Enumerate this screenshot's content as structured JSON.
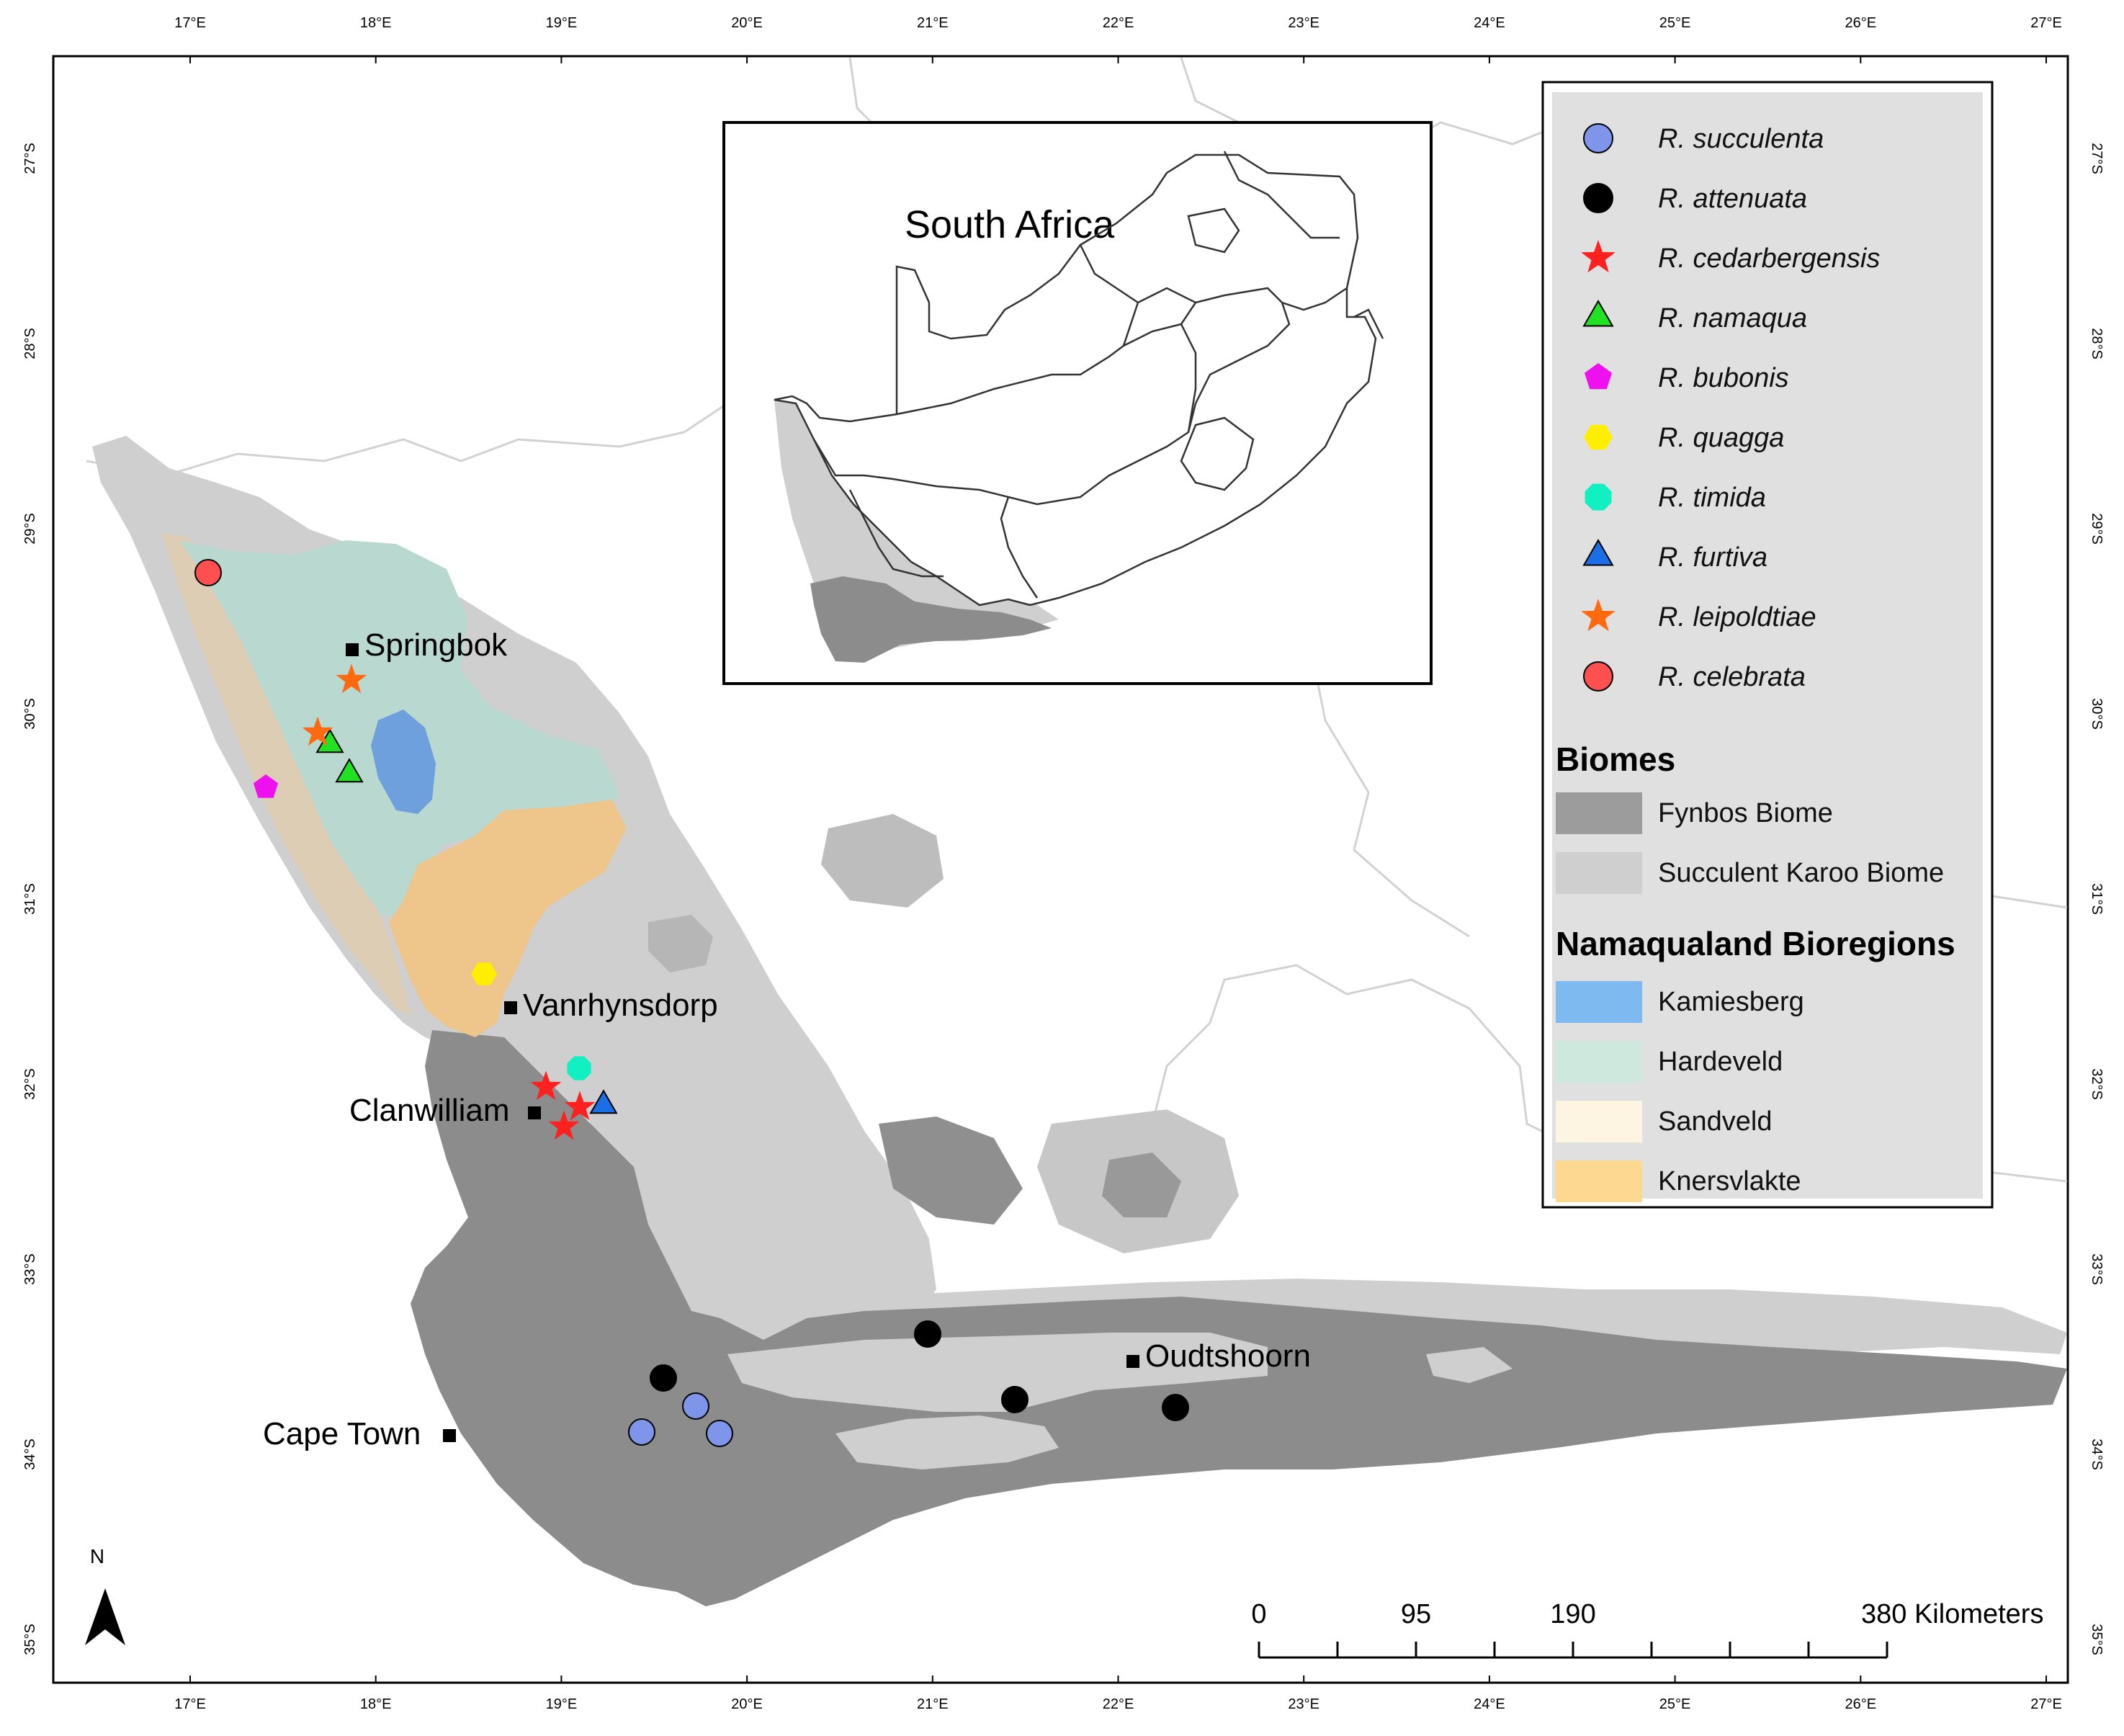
{
  "map": {
    "lon_ticks": [
      "17°E",
      "18°E",
      "19°E",
      "20°E",
      "21°E",
      "22°E",
      "23°E",
      "24°E",
      "25°E",
      "26°E",
      "27°E"
    ],
    "lat_ticks": [
      "27°S",
      "28°S",
      "29°S",
      "30°S",
      "31°S",
      "32°S",
      "33°S",
      "34°S",
      "35°S"
    ],
    "towns": [
      {
        "name": "Springbok"
      },
      {
        "name": "Vanrhynsdorp"
      },
      {
        "name": "Clanwilliam"
      },
      {
        "name": "Cape Town"
      },
      {
        "name": "Oudtshoorn"
      }
    ],
    "north_arrow": "N",
    "inset": {
      "title": "South Africa"
    },
    "scale_bar": {
      "labels": [
        "0",
        "95",
        "190",
        "380 Kilometers"
      ]
    },
    "colors": {
      "fynbos": "#8c8c8c",
      "succulent_karoo": "#cfcfcf",
      "kamiesberg": "#7eb3ee",
      "hardeveld": "#cfe8dd",
      "sandveld": "#fdf5e2",
      "knersvlakte": "#fcd891",
      "legend_bg": "#e0e0e0"
    }
  },
  "legend": {
    "species": [
      {
        "label": "R. succulenta",
        "icon": "circle-icon",
        "color": "#7f95ea"
      },
      {
        "label": "R. attenuata",
        "icon": "circle-icon",
        "color": "#000000"
      },
      {
        "label": "R. cedarbergensis",
        "icon": "star-icon",
        "color": "#ff2020"
      },
      {
        "label": "R. namaqua",
        "icon": "triangle-icon",
        "color": "#22e022"
      },
      {
        "label": "R. bubonis",
        "icon": "pentagon-icon",
        "color": "#ee10ee"
      },
      {
        "label": "R. quagga",
        "icon": "hexagon-icon",
        "color": "#ffee00"
      },
      {
        "label": "R. timida",
        "icon": "octagon-icon",
        "color": "#10f0c0"
      },
      {
        "label": "R. furtiva",
        "icon": "triangle-icon",
        "color": "#1a6fe6"
      },
      {
        "label": "R. leipoldtiae",
        "icon": "star-icon",
        "color": "#ff6a10"
      },
      {
        "label": "R. celebrata",
        "icon": "circle-icon",
        "color": "#ff5050"
      }
    ],
    "biomes_heading": "Biomes",
    "biomes": [
      {
        "label": "Fynbos Biome",
        "color": "#9c9c9c"
      },
      {
        "label": "Succulent Karoo Biome",
        "color": "#cfcfcf"
      }
    ],
    "bioregions_heading": "Namaqualand Bioregions",
    "bioregions": [
      {
        "label": "Kamiesberg",
        "color": "#7eb9f0"
      },
      {
        "label": "Hardeveld",
        "color": "#cfe8dd"
      },
      {
        "label": "Sandveld",
        "color": "#fdf5e2"
      },
      {
        "label": "Knersvlakte",
        "color": "#fcd891"
      }
    ]
  }
}
